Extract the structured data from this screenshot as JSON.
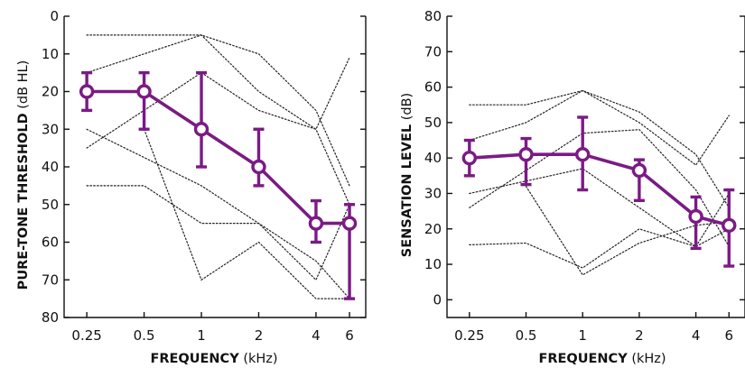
{
  "chart_data": [
    {
      "type": "line",
      "title": "",
      "xlabel": "FREQUENCY",
      "xlabel_unit": "(kHz)",
      "ylabel": "PURE-TONE THRESHOLD",
      "ylabel_unit": "(dB HL)",
      "x_scale": "log",
      "y_inverted": true,
      "xlim": [
        0.19,
        7.3
      ],
      "ylim": [
        0,
        80
      ],
      "x_ticks": [
        0.25,
        0.5,
        1,
        2,
        4,
        6
      ],
      "x_tick_labels": [
        "0.25",
        "0.5",
        "1",
        "2",
        "4",
        "6"
      ],
      "y_ticks": [
        0,
        10,
        20,
        30,
        40,
        50,
        60,
        70,
        80
      ],
      "y_tick_labels": [
        "0",
        "10",
        "20",
        "30",
        "40",
        "50",
        "60",
        "70",
        "80"
      ],
      "grid": false,
      "legend": "none",
      "colors": {
        "mean": "#7b1a85",
        "individual": "#222222"
      },
      "mean_series": {
        "x": [
          0.25,
          0.5,
          1,
          2,
          4,
          6
        ],
        "y": [
          20,
          20,
          30,
          40,
          55,
          55
        ],
        "err_low": [
          15,
          15,
          15,
          30,
          49,
          50
        ],
        "err_high": [
          25,
          30,
          40,
          45,
          60,
          75
        ]
      },
      "individual_series": [
        {
          "x": [
            0.25,
            1,
            2,
            4,
            6
          ],
          "y": [
            5,
            5,
            10,
            25,
            45
          ]
        },
        {
          "x": [
            0.25,
            1,
            2,
            4,
            6
          ],
          "y": [
            15,
            5,
            20,
            30,
            11
          ]
        },
        {
          "x": [
            0.25,
            1,
            2,
            4,
            6
          ],
          "y": [
            35,
            15,
            25,
            30,
            50
          ]
        },
        {
          "x": [
            0.25,
            1,
            2,
            4,
            6
          ],
          "y": [
            30,
            45,
            55,
            65,
            75
          ]
        },
        {
          "x": [
            0.25,
            0.5,
            1,
            2,
            4,
            6
          ],
          "y": [
            45,
            45,
            55,
            55,
            70,
            50
          ]
        },
        {
          "x": [
            0.5,
            1,
            2,
            4,
            6
          ],
          "y": [
            30,
            70,
            60,
            75,
            75
          ]
        }
      ]
    },
    {
      "type": "line",
      "title": "",
      "xlabel": "FREQUENCY",
      "xlabel_unit": "(kHz)",
      "ylabel": "SENSATION LEVEL",
      "ylabel_unit": "(dB)",
      "x_scale": "log",
      "y_inverted": false,
      "xlim": [
        0.19,
        7.3
      ],
      "ylim": [
        -5,
        80
      ],
      "x_ticks": [
        0.25,
        0.5,
        1,
        2,
        4,
        6
      ],
      "x_tick_labels": [
        "0.25",
        "0.5",
        "1",
        "2",
        "4",
        "6"
      ],
      "y_ticks": [
        0,
        10,
        20,
        30,
        40,
        50,
        60,
        70,
        80
      ],
      "y_tick_labels": [
        "0",
        "10",
        "20",
        "30",
        "40",
        "50",
        "60",
        "70",
        "80"
      ],
      "grid": false,
      "legend": "none",
      "colors": {
        "mean": "#7b1a85",
        "individual": "#222222"
      },
      "mean_series": {
        "x": [
          0.25,
          0.5,
          1,
          2,
          4,
          6
        ],
        "y": [
          40,
          41,
          41,
          36.5,
          23.5,
          21
        ],
        "err_low": [
          35,
          32.5,
          31,
          28,
          14.5,
          9.5
        ],
        "err_high": [
          45,
          45.5,
          51.5,
          39.5,
          29,
          31
        ]
      },
      "individual_series": [
        {
          "x": [
            0.25,
            0.5,
            1,
            2,
            4,
            6
          ],
          "y": [
            55,
            55,
            59,
            53,
            41,
            26
          ]
        },
        {
          "x": [
            0.25,
            0.5,
            1,
            2,
            4,
            6
          ],
          "y": [
            45,
            50,
            59,
            50,
            38,
            52
          ]
        },
        {
          "x": [
            0.25,
            1,
            2,
            4,
            6
          ],
          "y": [
            30,
            37,
            26,
            15,
            30
          ]
        },
        {
          "x": [
            0.25,
            1,
            2,
            4,
            6
          ],
          "y": [
            26,
            47,
            48,
            31,
            15
          ]
        },
        {
          "x": [
            0.25,
            0.5,
            1,
            2,
            4,
            6
          ],
          "y": [
            15.5,
            16,
            9,
            20,
            15,
            20
          ]
        },
        {
          "x": [
            0.5,
            1,
            2,
            4,
            6
          ],
          "y": [
            32,
            7,
            16,
            21,
            22
          ]
        }
      ]
    }
  ]
}
